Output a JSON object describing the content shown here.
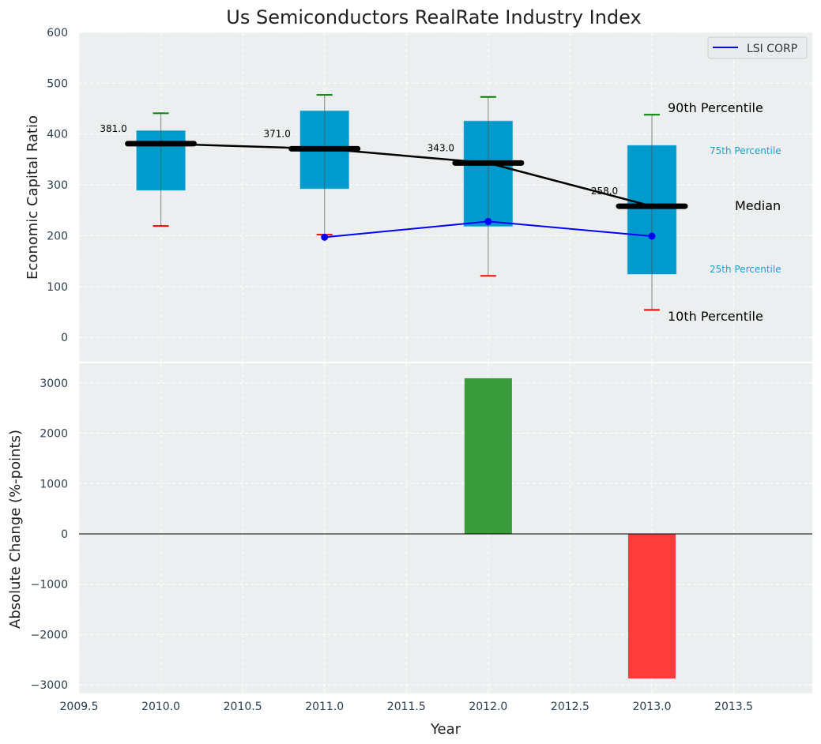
{
  "chart_data": [
    {
      "type": "box",
      "title": "Us Semiconductors RealRate Industry Index",
      "ylabel": "Economic Capital Ratio",
      "xlim": [
        2009.5,
        2013.98
      ],
      "ylim": [
        -48,
        600
      ],
      "grid": true,
      "yticks": [
        0,
        100,
        200,
        300,
        400,
        500,
        600
      ],
      "categories": [
        2010,
        2011,
        2012,
        2013
      ],
      "boxes": [
        {
          "x": 2010,
          "p10": 219,
          "p25": 289,
          "median": 381,
          "p75": 407,
          "p90": 441,
          "label": "381.0"
        },
        {
          "x": 2011,
          "p10": 202,
          "p25": 292,
          "median": 371,
          "p75": 446,
          "p90": 477,
          "label": "371.0"
        },
        {
          "x": 2012,
          "p10": 121,
          "p25": 218,
          "median": 343,
          "p75": 426,
          "p90": 473,
          "label": "343.0"
        },
        {
          "x": 2013,
          "p10": 54,
          "p25": 124,
          "median": 258,
          "p75": 378,
          "p90": 438,
          "label": "258.0"
        }
      ],
      "series": [
        {
          "name": "LSI CORP",
          "color": "#0000ff",
          "x": [
            2011,
            2012,
            2013
          ],
          "values": [
            197,
            228,
            199
          ]
        }
      ],
      "legend": {
        "placement": "top-right",
        "entries": [
          "LSI CORP"
        ]
      },
      "annotations": {
        "p90": "90th Percentile",
        "p75": "75th Percentile",
        "median": "Median",
        "p25": "25th Percentile",
        "p10": "10th Percentile"
      },
      "colors": {
        "box": "#009ACD",
        "p90": "#008000",
        "p10": "#ff0000",
        "median": "#000000",
        "background": "#ECEFF0"
      }
    },
    {
      "type": "bar",
      "ylabel": "Absolute Change (%-points)",
      "xlabel": "Year",
      "xlim": [
        2009.5,
        2013.98
      ],
      "ylim": [
        -3171,
        3390
      ],
      "grid": true,
      "yticks": [
        -3000,
        -2000,
        -1000,
        0,
        1000,
        2000,
        3000
      ],
      "ytick_labels": [
        "−3000",
        "−2000",
        "−1000",
        "0",
        "1000",
        "2000",
        "3000"
      ],
      "xticks": [
        2009.5,
        2010.0,
        2010.5,
        2011.0,
        2011.5,
        2012.0,
        2012.5,
        2013.0,
        2013.5
      ],
      "xtick_labels": [
        "2009.5",
        "2010.0",
        "2010.5",
        "2011.0",
        "2011.5",
        "2012.0",
        "2012.5",
        "2013.0",
        "2013.5"
      ],
      "categories": [
        2012,
        2013
      ],
      "values": [
        3093,
        -2873
      ],
      "colors": {
        "positive": "#3A9B3D",
        "negative": "#FF3B3B"
      }
    }
  ]
}
